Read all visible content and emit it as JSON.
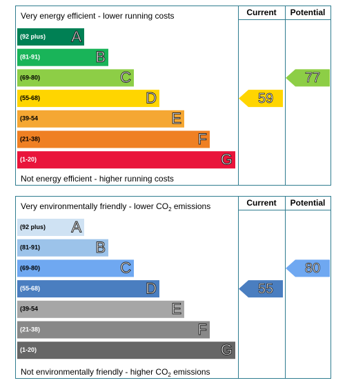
{
  "panels": [
    {
      "header": [
        "Very energy efficient - lower running costs"
      ],
      "footer": [
        "Not energy efficient - higher running costs"
      ],
      "columns": [
        "Current",
        "Potential"
      ],
      "bands": [
        {
          "range": "(92 plus)",
          "letter": "A",
          "color": "#008054"
        },
        {
          "range": "(81-91)",
          "letter": "B",
          "color": "#19b459"
        },
        {
          "range": "(69-80)",
          "letter": "C",
          "color": "#8dce46"
        },
        {
          "range": "(55-68)",
          "letter": "D",
          "color": "#ffd500"
        },
        {
          "range": "(39-54",
          "letter": "E",
          "color": "#f5a733"
        },
        {
          "range": "(21-38)",
          "letter": "F",
          "color": "#ef8023"
        },
        {
          "range": "(1-20)",
          "letter": "G",
          "color": "#e9153b"
        }
      ],
      "current": 59,
      "potential": 77
    },
    {
      "header": [
        "Very environmentally friendly - lower CO",
        "2",
        " emissions"
      ],
      "footer": [
        "Not environmentally friendly - higher CO",
        "2",
        " emissions"
      ],
      "columns": [
        "Current",
        "Potential"
      ],
      "bands": [
        {
          "range": "(92 plus)",
          "letter": "A",
          "color": "#cfe2f3"
        },
        {
          "range": "(81-91)",
          "letter": "B",
          "color": "#9cc3ea"
        },
        {
          "range": "(69-80)",
          "letter": "C",
          "color": "#6fa8f1"
        },
        {
          "range": "(55-68)",
          "letter": "D",
          "color": "#4a7ec0"
        },
        {
          "range": "(39-54",
          "letter": "E",
          "color": "#a6a6a6"
        },
        {
          "range": "(21-38)",
          "letter": "F",
          "color": "#888888"
        },
        {
          "range": "(1-20)",
          "letter": "G",
          "color": "#666666"
        }
      ],
      "current": 55,
      "potential": 80
    }
  ]
}
